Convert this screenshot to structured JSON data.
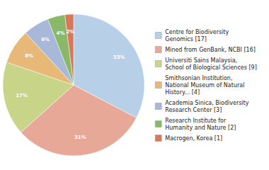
{
  "chart_data": {
    "type": "pie",
    "categories": [
      "Centre for Biodiversity\nGenomics [17]",
      "Mined from GenBank, NCBI [16]",
      "Universiti Sains Malaysia,\nSchool of Biological Sciences [9]",
      "Smithsonian Institution,\nNational Museum of Natural\nHistory... [4]",
      "Academia Sinica, Biodiversity\nResearch Center [3]",
      "Research Institute for\nHumanity and Nature [2]",
      "Macrogen, Korea [1]"
    ],
    "values": [
      33,
      31,
      17,
      8,
      6,
      4,
      2
    ],
    "value_labels": [
      "33%",
      "31%",
      "17%",
      "8%",
      "6%",
      "4%",
      "2%"
    ],
    "colors": [
      "#b8cfe8",
      "#e8a898",
      "#c8d488",
      "#e8b878",
      "#a8b8d8",
      "#88b868",
      "#d87858"
    ],
    "data_labels": true,
    "legend": "right"
  }
}
